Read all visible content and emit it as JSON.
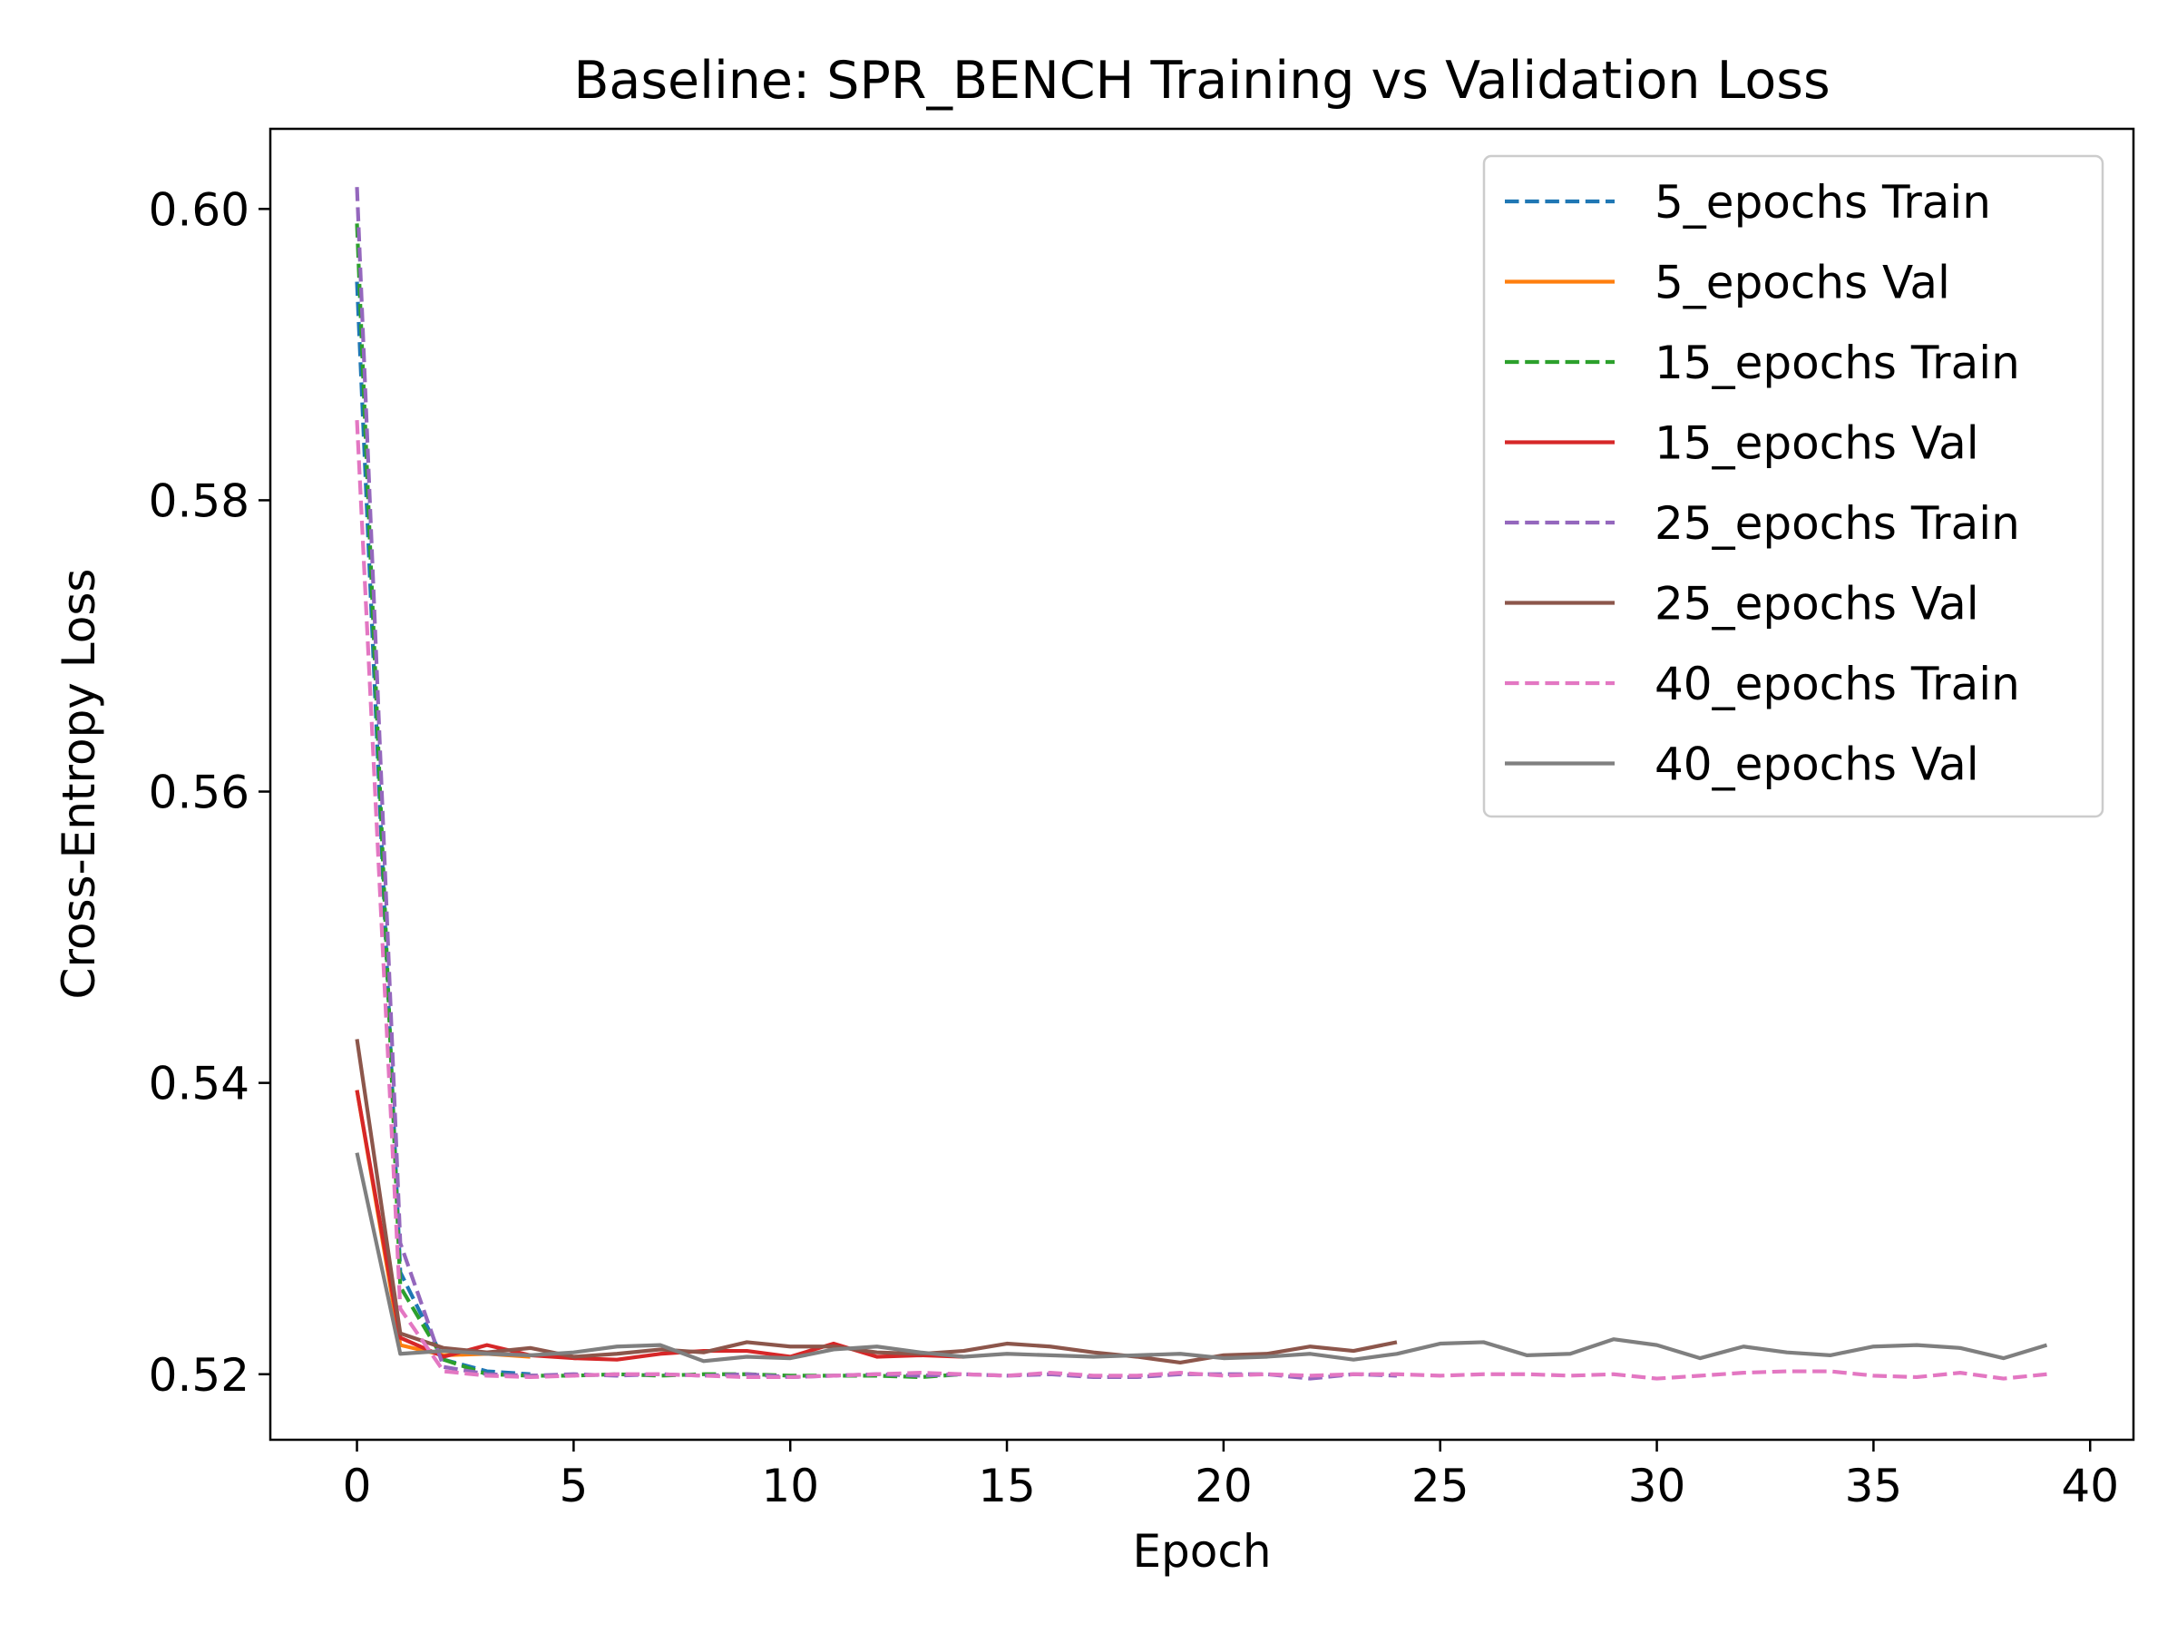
{
  "chart_data": {
    "type": "line",
    "title": "Baseline: SPR_BENCH Training vs Validation Loss",
    "xlabel": "Epoch",
    "ylabel": "Cross-Entropy Loss",
    "xlim": [
      -2,
      41
    ],
    "ylim": [
      0.5155,
      0.6055
    ],
    "xticks": [
      0,
      5,
      10,
      15,
      20,
      25,
      30,
      35,
      40
    ],
    "xtick_labels": [
      "0",
      "5",
      "10",
      "15",
      "20",
      "25",
      "30",
      "35",
      "40"
    ],
    "yticks": [
      0.52,
      0.54,
      0.56,
      0.58,
      0.6
    ],
    "ytick_labels": [
      "0.52",
      "0.54",
      "0.56",
      "0.58",
      "0.60"
    ],
    "grid": false,
    "legend_position": "top-right",
    "series": [
      {
        "name": "5_epochs Train",
        "color": "#1f77b4",
        "dash": "dashed",
        "x": [
          0,
          1,
          2,
          3,
          4
        ],
        "y": [
          0.595,
          0.527,
          0.521,
          0.5202,
          0.52
        ]
      },
      {
        "name": "5_epochs Val",
        "color": "#ff7f0e",
        "dash": "solid",
        "x": [
          0,
          1,
          2,
          3,
          4
        ],
        "y": [
          0.5395,
          0.522,
          0.5213,
          0.5214,
          0.5212
        ]
      },
      {
        "name": "15_epochs Train",
        "color": "#2ca02c",
        "dash": "dashed",
        "x": [
          0,
          1,
          2,
          3,
          4,
          5,
          6,
          7,
          8,
          9,
          10,
          11,
          12,
          13,
          14
        ],
        "y": [
          0.599,
          0.526,
          0.521,
          0.52,
          0.5199,
          0.5199,
          0.52,
          0.5199,
          0.52,
          0.52,
          0.5199,
          0.5199,
          0.5199,
          0.5198,
          0.52
        ]
      },
      {
        "name": "15_epochs Val",
        "color": "#d62728",
        "dash": "solid",
        "x": [
          0,
          1,
          2,
          3,
          4,
          5,
          6,
          7,
          8,
          9,
          10,
          11,
          12,
          13,
          14
        ],
        "y": [
          0.5395,
          0.5225,
          0.5212,
          0.522,
          0.5213,
          0.5211,
          0.521,
          0.5214,
          0.5216,
          0.5216,
          0.5212,
          0.5221,
          0.5212,
          0.5213,
          0.5212
        ]
      },
      {
        "name": "25_epochs Train",
        "color": "#9467bd",
        "dash": "dashed",
        "x": [
          0,
          1,
          2,
          3,
          4,
          5,
          6,
          7,
          8,
          9,
          10,
          11,
          12,
          13,
          14,
          15,
          16,
          17,
          18,
          19,
          20,
          21,
          22,
          23,
          24
        ],
        "y": [
          0.6015,
          0.529,
          0.5205,
          0.52,
          0.5199,
          0.52,
          0.5199,
          0.52,
          0.5199,
          0.52,
          0.5198,
          0.5199,
          0.52,
          0.5199,
          0.52,
          0.5199,
          0.52,
          0.5198,
          0.5198,
          0.52,
          0.52,
          0.52,
          0.5197,
          0.52,
          0.5199
        ]
      },
      {
        "name": "25_epochs Val",
        "color": "#8c564b",
        "dash": "solid",
        "x": [
          0,
          1,
          2,
          3,
          4,
          5,
          6,
          7,
          8,
          9,
          10,
          11,
          12,
          13,
          14,
          15,
          16,
          17,
          18,
          19,
          20,
          21,
          22,
          23,
          24
        ],
        "y": [
          0.543,
          0.5228,
          0.5218,
          0.5215,
          0.5218,
          0.5212,
          0.5214,
          0.5217,
          0.5215,
          0.5222,
          0.5219,
          0.5219,
          0.5215,
          0.5214,
          0.5216,
          0.5221,
          0.5219,
          0.5215,
          0.5212,
          0.5208,
          0.5213,
          0.5214,
          0.5219,
          0.5216,
          0.5222
        ]
      },
      {
        "name": "40_epochs Train",
        "color": "#e377c2",
        "dash": "dashed",
        "x": [
          0,
          1,
          2,
          3,
          4,
          5,
          6,
          7,
          8,
          9,
          10,
          11,
          12,
          13,
          14,
          15,
          16,
          17,
          18,
          19,
          20,
          21,
          22,
          23,
          24,
          25,
          26,
          27,
          28,
          29,
          30,
          31,
          32,
          33,
          34,
          35,
          36,
          37,
          38,
          39
        ],
        "y": [
          0.5855,
          0.5245,
          0.5202,
          0.5199,
          0.5198,
          0.5199,
          0.52,
          0.52,
          0.5199,
          0.5198,
          0.5198,
          0.5199,
          0.52,
          0.5201,
          0.52,
          0.5199,
          0.5201,
          0.5199,
          0.5199,
          0.5201,
          0.5199,
          0.52,
          0.5199,
          0.52,
          0.52,
          0.5199,
          0.52,
          0.52,
          0.5199,
          0.52,
          0.5197,
          0.5199,
          0.5201,
          0.5202,
          0.5202,
          0.5199,
          0.5198,
          0.5201,
          0.5197,
          0.52
        ]
      },
      {
        "name": "40_epochs Val",
        "color": "#7f7f7f",
        "dash": "solid",
        "x": [
          0,
          1,
          2,
          3,
          4,
          5,
          6,
          7,
          8,
          9,
          10,
          11,
          12,
          13,
          14,
          15,
          16,
          17,
          18,
          19,
          20,
          21,
          22,
          23,
          24,
          25,
          26,
          27,
          28,
          29,
          30,
          31,
          32,
          33,
          34,
          35,
          36,
          37,
          38,
          39
        ],
        "y": [
          0.5352,
          0.5214,
          0.5216,
          0.5214,
          0.5213,
          0.5215,
          0.5219,
          0.522,
          0.5209,
          0.5212,
          0.5211,
          0.5217,
          0.5219,
          0.5215,
          0.5212,
          0.5214,
          0.5213,
          0.5212,
          0.5213,
          0.5214,
          0.5211,
          0.5212,
          0.5214,
          0.521,
          0.5214,
          0.5221,
          0.5222,
          0.5213,
          0.5214,
          0.5224,
          0.522,
          0.5211,
          0.5219,
          0.5215,
          0.5213,
          0.5219,
          0.522,
          0.5218,
          0.5211,
          0.522
        ]
      }
    ]
  }
}
